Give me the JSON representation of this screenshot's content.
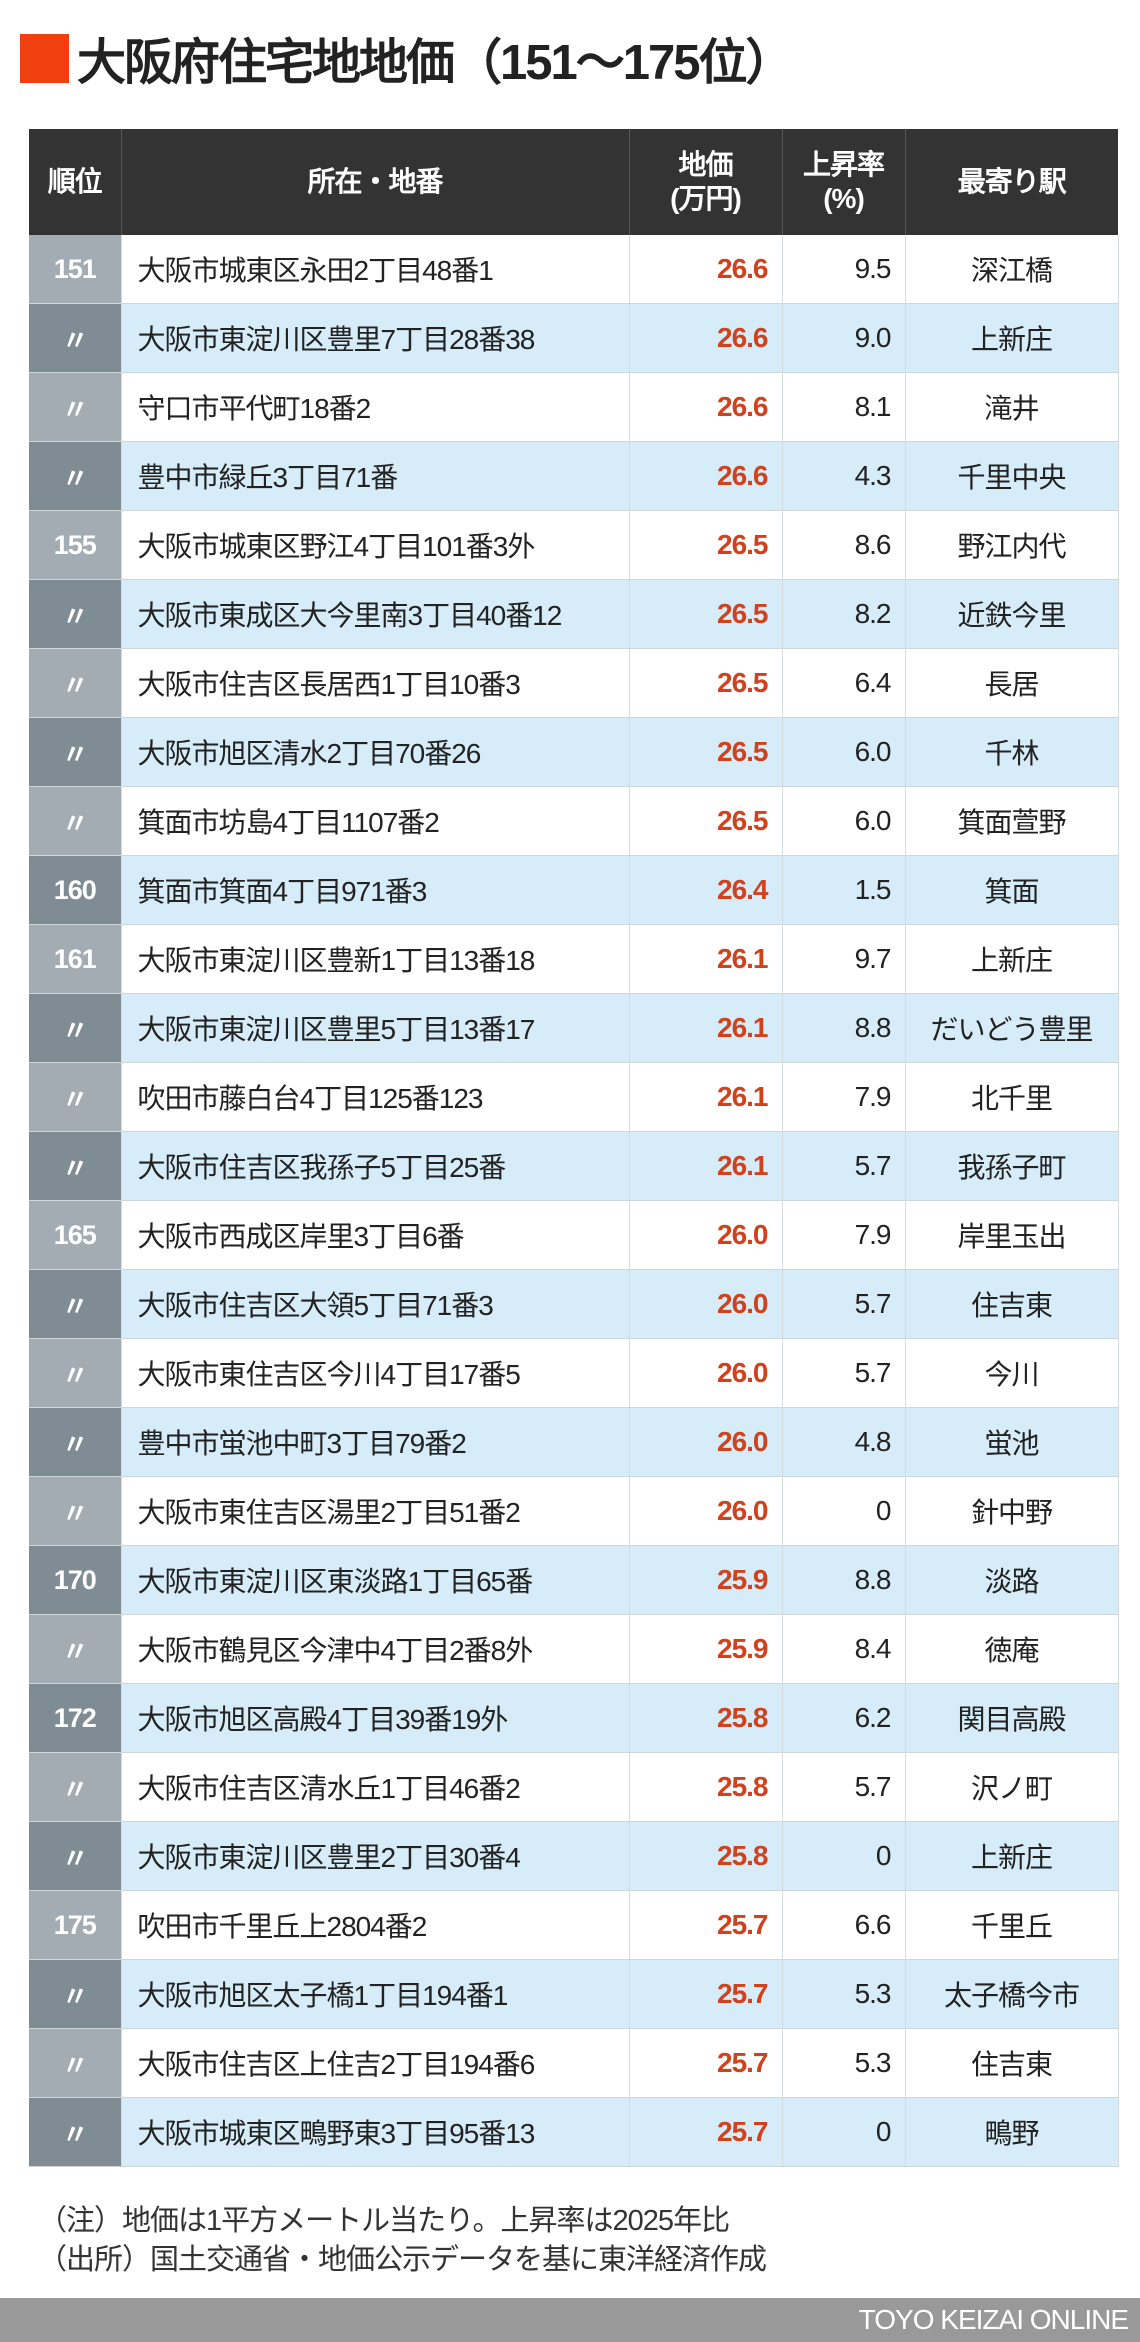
{
  "title": "大阪府住宅地地価（151〜175位）",
  "accent_color": "#f0400f",
  "table": {
    "headers": {
      "rank": "順位",
      "address": "所在・地番",
      "price_line1": "地価",
      "price_line2": "(万円)",
      "rate_line1": "上昇率",
      "rate_line2": "(%)",
      "station": "最寄り駅"
    },
    "rows": [
      {
        "rank": "151",
        "address": "大阪市城東区永田2丁目48番1",
        "price": "26.6",
        "rate": "9.5",
        "station": "深江橋"
      },
      {
        "rank": "〃",
        "address": "大阪市東淀川区豊里7丁目28番38",
        "price": "26.6",
        "rate": "9.0",
        "station": "上新庄"
      },
      {
        "rank": "〃",
        "address": "守口市平代町18番2",
        "price": "26.6",
        "rate": "8.1",
        "station": "滝井"
      },
      {
        "rank": "〃",
        "address": "豊中市緑丘3丁目71番",
        "price": "26.6",
        "rate": "4.3",
        "station": "千里中央"
      },
      {
        "rank": "155",
        "address": "大阪市城東区野江4丁目101番3外",
        "price": "26.5",
        "rate": "8.6",
        "station": "野江内代"
      },
      {
        "rank": "〃",
        "address": "大阪市東成区大今里南3丁目40番12",
        "price": "26.5",
        "rate": "8.2",
        "station": "近鉄今里"
      },
      {
        "rank": "〃",
        "address": "大阪市住吉区長居西1丁目10番3",
        "price": "26.5",
        "rate": "6.4",
        "station": "長居"
      },
      {
        "rank": "〃",
        "address": "大阪市旭区清水2丁目70番26",
        "price": "26.5",
        "rate": "6.0",
        "station": "千林"
      },
      {
        "rank": "〃",
        "address": "箕面市坊島4丁目1107番2",
        "price": "26.5",
        "rate": "6.0",
        "station": "箕面萱野"
      },
      {
        "rank": "160",
        "address": "箕面市箕面4丁目971番3",
        "price": "26.4",
        "rate": "1.5",
        "station": "箕面"
      },
      {
        "rank": "161",
        "address": "大阪市東淀川区豊新1丁目13番18",
        "price": "26.1",
        "rate": "9.7",
        "station": "上新庄"
      },
      {
        "rank": "〃",
        "address": "大阪市東淀川区豊里5丁目13番17",
        "price": "26.1",
        "rate": "8.8",
        "station": "だいどう豊里"
      },
      {
        "rank": "〃",
        "address": "吹田市藤白台4丁目125番123",
        "price": "26.1",
        "rate": "7.9",
        "station": "北千里"
      },
      {
        "rank": "〃",
        "address": "大阪市住吉区我孫子5丁目25番",
        "price": "26.1",
        "rate": "5.7",
        "station": "我孫子町"
      },
      {
        "rank": "165",
        "address": "大阪市西成区岸里3丁目6番",
        "price": "26.0",
        "rate": "7.9",
        "station": "岸里玉出"
      },
      {
        "rank": "〃",
        "address": "大阪市住吉区大領5丁目71番3",
        "price": "26.0",
        "rate": "5.7",
        "station": "住吉東"
      },
      {
        "rank": "〃",
        "address": "大阪市東住吉区今川4丁目17番5",
        "price": "26.0",
        "rate": "5.7",
        "station": "今川"
      },
      {
        "rank": "〃",
        "address": "豊中市蛍池中町3丁目79番2",
        "price": "26.0",
        "rate": "4.8",
        "station": "蛍池"
      },
      {
        "rank": "〃",
        "address": "大阪市東住吉区湯里2丁目51番2",
        "price": "26.0",
        "rate": "0",
        "station": "針中野"
      },
      {
        "rank": "170",
        "address": "大阪市東淀川区東淡路1丁目65番",
        "price": "25.9",
        "rate": "8.8",
        "station": "淡路"
      },
      {
        "rank": "〃",
        "address": "大阪市鶴見区今津中4丁目2番8外",
        "price": "25.9",
        "rate": "8.4",
        "station": "徳庵"
      },
      {
        "rank": "172",
        "address": "大阪市旭区高殿4丁目39番19外",
        "price": "25.8",
        "rate": "6.2",
        "station": "関目高殿"
      },
      {
        "rank": "〃",
        "address": "大阪市住吉区清水丘1丁目46番2",
        "price": "25.8",
        "rate": "5.7",
        "station": "沢ノ町"
      },
      {
        "rank": "〃",
        "address": "大阪市東淀川区豊里2丁目30番4",
        "price": "25.8",
        "rate": "0",
        "station": "上新庄"
      },
      {
        "rank": "175",
        "address": "吹田市千里丘上2804番2",
        "price": "25.7",
        "rate": "6.6",
        "station": "千里丘"
      },
      {
        "rank": "〃",
        "address": "大阪市旭区太子橋1丁目194番1",
        "price": "25.7",
        "rate": "5.3",
        "station": "太子橋今市"
      },
      {
        "rank": "〃",
        "address": "大阪市住吉区上住吉2丁目194番6",
        "price": "25.7",
        "rate": "5.3",
        "station": "住吉東"
      },
      {
        "rank": "〃",
        "address": "大阪市城東区鴫野東3丁目95番13",
        "price": "25.7",
        "rate": "0",
        "station": "鴫野"
      }
    ]
  },
  "notes": {
    "note": "（注）地価は1平方メートル当たり。上昇率は2025年比",
    "source": "（出所）国土交通省・地価公示データを基に東洋経済作成"
  },
  "footer": {
    "brand": "TOYO KEIZAI ONLINE"
  }
}
